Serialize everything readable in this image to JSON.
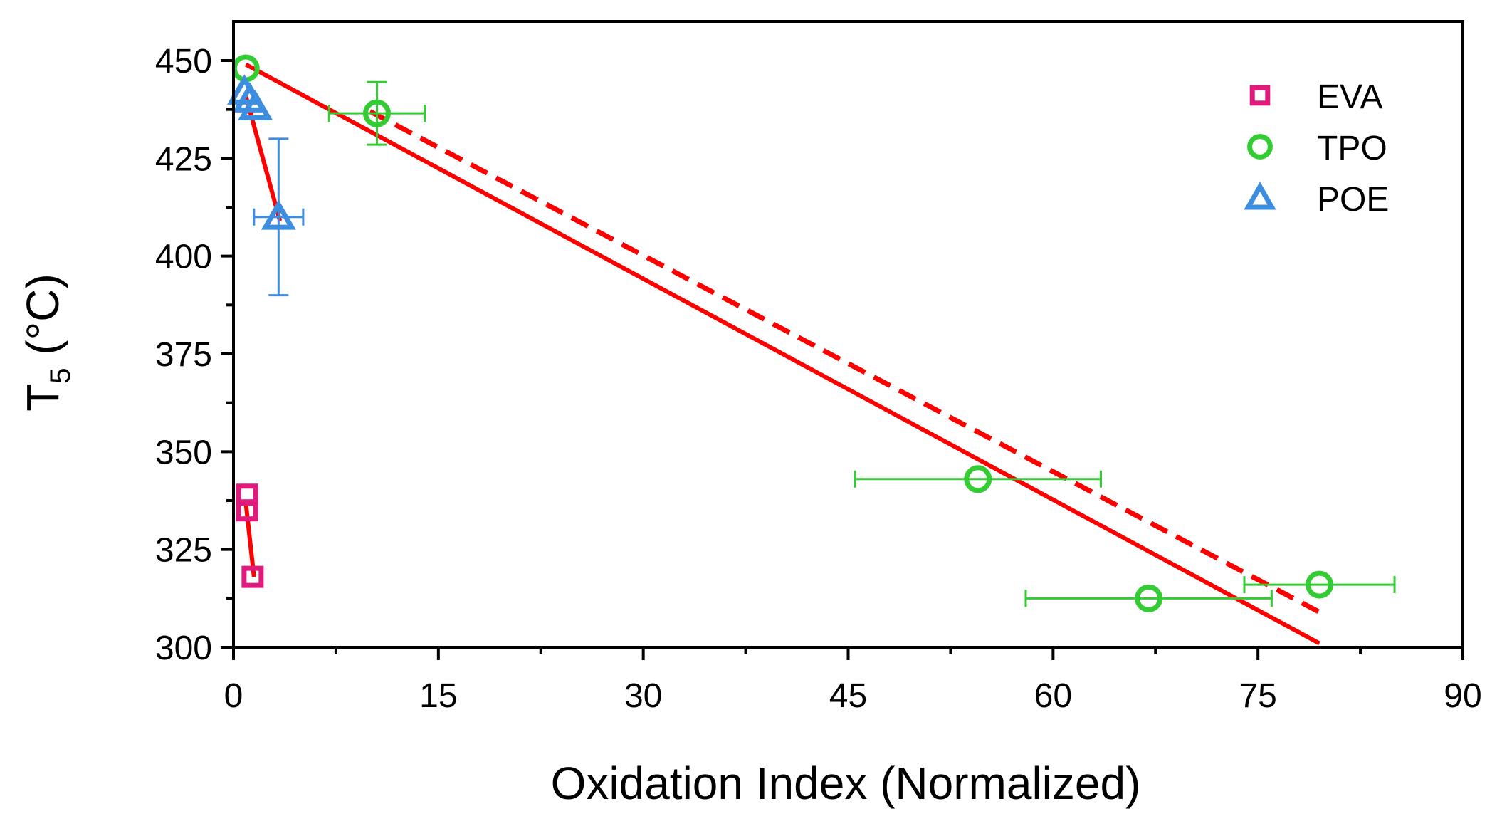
{
  "chart_data": {
    "type": "scatter",
    "title": "",
    "xlabel": "Oxidation Index (Normalized)",
    "ylabel_main": "T",
    "ylabel_sub": "5",
    "ylabel_unit": " (°C)",
    "xlim": [
      0,
      90
    ],
    "ylim": [
      300,
      455
    ],
    "xticks": [
      0,
      15,
      30,
      45,
      60,
      75,
      90
    ],
    "yticks": [
      300,
      325,
      350,
      375,
      400,
      425,
      450
    ],
    "legend_position": "top-right",
    "series": [
      {
        "name": "EVA",
        "marker": "square",
        "color": "#E0197D",
        "points": [
          {
            "x": 1.0,
            "y": 339,
            "xerr": 0,
            "yerr": 0
          },
          {
            "x": 1.0,
            "y": 335,
            "xerr": 0,
            "yerr": 0
          },
          {
            "x": 1.4,
            "y": 318,
            "xerr": 0,
            "yerr": 0
          }
        ],
        "fit": [
          [
            0.9,
            337
          ],
          [
            1.5,
            318
          ]
        ]
      },
      {
        "name": "TPO",
        "marker": "circle",
        "color": "#33CC33",
        "points": [
          {
            "x": 0.9,
            "y": 448,
            "xerr": 0,
            "yerr": 0
          },
          {
            "x": 10.5,
            "y": 436.5,
            "xerr": 3.5,
            "yerr": 8
          },
          {
            "x": 54.5,
            "y": 343,
            "xerr": 9,
            "yerr": 0
          },
          {
            "x": 67,
            "y": 312.5,
            "xerr": 9,
            "yerr": 0
          },
          {
            "x": 79.5,
            "y": 316,
            "xerr": 5.5,
            "yerr": 0
          }
        ],
        "fit": [
          [
            0.9,
            449
          ],
          [
            79.5,
            301
          ]
        ],
        "fit_dashed": [
          [
            10,
            437
          ],
          [
            79.5,
            309
          ]
        ]
      },
      {
        "name": "POE",
        "marker": "triangle",
        "color": "#3D8EE0",
        "points": [
          {
            "x": 0.8,
            "y": 442,
            "xerr": 0,
            "yerr": 0
          },
          {
            "x": 1.2,
            "y": 440,
            "xerr": 0,
            "yerr": 0
          },
          {
            "x": 1.6,
            "y": 438,
            "xerr": 0,
            "yerr": 0
          },
          {
            "x": 3.3,
            "y": 410,
            "xerr": 1.8,
            "yerr": 20
          }
        ],
        "fit": [
          [
            0.9,
            441
          ],
          [
            3.4,
            409
          ]
        ]
      }
    ],
    "fit_color": "#FF0000"
  }
}
